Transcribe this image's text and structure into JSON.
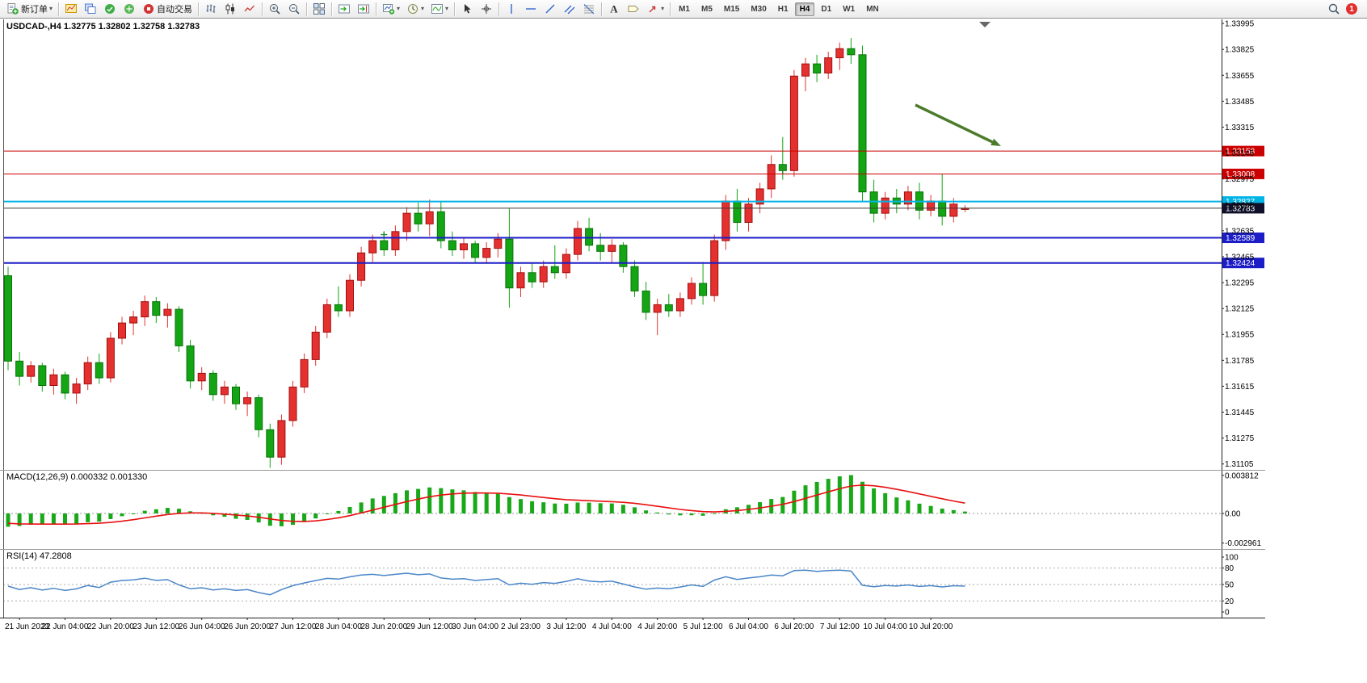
{
  "toolbar": {
    "groups": [
      {
        "buttons": [
          {
            "name": "new-order",
            "icon": "new-order-icon",
            "label": "新订单",
            "caret": true
          }
        ]
      },
      {
        "buttons": [
          {
            "name": "new-chart",
            "icon": "new-chart-icon"
          },
          {
            "name": "profiles",
            "icon": "profiles-icon"
          },
          {
            "name": "market-watch",
            "icon": "market-watch-icon"
          },
          {
            "name": "navigator",
            "icon": "navigator-icon"
          },
          {
            "name": "autotrading",
            "icon": "autotrading-icon",
            "label": "自动交易"
          }
        ]
      },
      {
        "buttons": [
          {
            "name": "bar-chart",
            "icon": "bar-chart-icon"
          },
          {
            "name": "candlestick-chart",
            "icon": "candlestick-icon"
          },
          {
            "name": "line-chart",
            "icon": "line-chart-icon"
          }
        ]
      },
      {
        "buttons": [
          {
            "name": "zoom-in",
            "icon": "zoom-in-icon"
          },
          {
            "name": "zoom-out",
            "icon": "zoom-out-icon"
          }
        ]
      },
      {
        "buttons": [
          {
            "name": "tile-windows",
            "icon": "tile-windows-icon"
          }
        ]
      },
      {
        "buttons": [
          {
            "name": "auto-scroll",
            "icon": "auto-scroll-icon"
          },
          {
            "name": "chart-shift",
            "icon": "chart-shift-icon"
          }
        ]
      },
      {
        "buttons": [
          {
            "name": "new-chart-menu",
            "icon": "chart-plus-icon",
            "caret": true
          },
          {
            "name": "periods-menu",
            "icon": "clock-icon",
            "caret": true
          },
          {
            "name": "indicators-menu",
            "icon": "indicators-icon",
            "caret": true
          }
        ]
      },
      {
        "buttons": [
          {
            "name": "cursor",
            "icon": "cursor-icon"
          },
          {
            "name": "crosshair",
            "icon": "crosshair-icon"
          }
        ]
      },
      {
        "buttons": [
          {
            "name": "vertical-line",
            "icon": "vertical-line-icon"
          },
          {
            "name": "horizontal-line",
            "icon": "horizontal-line-icon"
          },
          {
            "name": "trendline",
            "icon": "trendline-icon"
          },
          {
            "name": "equidistant-channel",
            "icon": "channel-icon"
          },
          {
            "name": "fibonacci",
            "icon": "fibonacci-icon"
          }
        ]
      },
      {
        "buttons": [
          {
            "name": "text",
            "icon": "text-icon"
          },
          {
            "name": "text-label",
            "icon": "label-icon"
          },
          {
            "name": "arrows",
            "icon": "arrow-icon",
            "caret": true
          }
        ]
      }
    ],
    "timeframes": {
      "items": [
        "M1",
        "M5",
        "M15",
        "M30",
        "H1",
        "H4",
        "D1",
        "W1",
        "MN"
      ],
      "active": "H4"
    },
    "right": {
      "notification_count": "1"
    }
  },
  "chart": {
    "header": "USDCAD-,H4 1.32775 1.32802 1.32758 1.32783",
    "symbol": "USDCAD-",
    "period": "H4",
    "open": "1.32775",
    "high": "1.32802",
    "low": "1.32758",
    "close": "1.32783"
  },
  "indicators": {
    "macd": {
      "header": "MACD(12,26,9) 0.000332 0.001330",
      "name": "MACD",
      "params": "12,26,9",
      "value_main": "0.000332",
      "value_signal": "0.001330",
      "scale": [
        "0.003812",
        "0.00",
        "-0.002961"
      ]
    },
    "rsi": {
      "header": "RSI(14) 47.2808",
      "name": "RSI",
      "period": "14",
      "value": "47.2808",
      "scale": [
        "100",
        "80",
        "50",
        "20",
        "0"
      ],
      "levels": [
        80,
        50,
        20
      ]
    }
  },
  "chart_data": {
    "type": "candlestick",
    "symbol": "USDCAD-",
    "timeframe": "H4",
    "ylim": [
      1.31077,
      1.34022
    ],
    "price_axis_labels": [
      "1.33995",
      "1.33825",
      "1.33655",
      "1.33485",
      "1.33315",
      "1.33145",
      "1.32975",
      "1.32805",
      "1.32635",
      "1.32465",
      "1.32295",
      "1.32125",
      "1.31955",
      "1.31785",
      "1.31615",
      "1.31445",
      "1.31275",
      "1.31105"
    ],
    "time_labels": [
      "21 Jun 2023",
      "22 Jun 04:00",
      "22 Jun 20:00",
      "23 Jun 12:00",
      "26 Jun 04:00",
      "26 Jun 20:00",
      "27 Jun 12:00",
      "28 Jun 04:00",
      "28 Jun 20:00",
      "29 Jun 12:00",
      "30 Jun 04:00",
      "2 Jul 23:00",
      "3 Jul 12:00",
      "4 Jul 04:00",
      "4 Jul 20:00",
      "5 Jul 12:00",
      "6 Jul 04:00",
      "6 Jul 20:00",
      "7 Jul 12:00",
      "10 Jul 04:00",
      "10 Jul 20:00"
    ],
    "label_every": 4,
    "first_label_index": 1,
    "candles_ohlc": [
      [
        1.3234,
        1.324,
        1.3172,
        1.3178
      ],
      [
        1.3178,
        1.3184,
        1.3162,
        1.3168
      ],
      [
        1.3168,
        1.3178,
        1.3164,
        1.3175
      ],
      [
        1.3175,
        1.3177,
        1.3158,
        1.3162
      ],
      [
        1.3162,
        1.3173,
        1.3156,
        1.3169
      ],
      [
        1.3169,
        1.3171,
        1.3153,
        1.3157
      ],
      [
        1.3157,
        1.3167,
        1.315,
        1.3163
      ],
      [
        1.3163,
        1.3181,
        1.3159,
        1.3177
      ],
      [
        1.3177,
        1.3183,
        1.3163,
        1.3167
      ],
      [
        1.3167,
        1.3197,
        1.3164,
        1.3193
      ],
      [
        1.3193,
        1.3207,
        1.3189,
        1.3203
      ],
      [
        1.3203,
        1.3211,
        1.3195,
        1.3207
      ],
      [
        1.3207,
        1.3221,
        1.3201,
        1.3217
      ],
      [
        1.3217,
        1.322,
        1.3203,
        1.3208
      ],
      [
        1.3208,
        1.3216,
        1.32,
        1.3212
      ],
      [
        1.3212,
        1.3214,
        1.3184,
        1.3188
      ],
      [
        1.3188,
        1.3192,
        1.316,
        1.3165
      ],
      [
        1.3165,
        1.3174,
        1.3159,
        1.317
      ],
      [
        1.317,
        1.3172,
        1.3152,
        1.3156
      ],
      [
        1.3156,
        1.3165,
        1.315,
        1.3161
      ],
      [
        1.3161,
        1.3163,
        1.3146,
        1.315
      ],
      [
        1.315,
        1.3158,
        1.3142,
        1.3154
      ],
      [
        1.3154,
        1.3156,
        1.3128,
        1.3133
      ],
      [
        1.3133,
        1.3137,
        1.3108,
        1.3115
      ],
      [
        1.3115,
        1.3143,
        1.311,
        1.3139
      ],
      [
        1.3139,
        1.3165,
        1.3135,
        1.3161
      ],
      [
        1.3161,
        1.3183,
        1.3157,
        1.3179
      ],
      [
        1.3179,
        1.3201,
        1.3175,
        1.3197
      ],
      [
        1.3197,
        1.3219,
        1.3193,
        1.3215
      ],
      [
        1.3215,
        1.3227,
        1.3207,
        1.3211
      ],
      [
        1.3211,
        1.3235,
        1.3207,
        1.3231
      ],
      [
        1.3231,
        1.3253,
        1.3227,
        1.3249
      ],
      [
        1.3249,
        1.3261,
        1.3243,
        1.3257
      ],
      [
        1.3257,
        1.3263,
        1.3247,
        1.3251
      ],
      [
        1.3251,
        1.3267,
        1.3247,
        1.3263
      ],
      [
        1.3263,
        1.3279,
        1.3257,
        1.3275
      ],
      [
        1.3275,
        1.3282,
        1.3263,
        1.3268
      ],
      [
        1.3268,
        1.3284,
        1.326,
        1.3276
      ],
      [
        1.3276,
        1.3283,
        1.3252,
        1.3257
      ],
      [
        1.3257,
        1.3263,
        1.3247,
        1.3251
      ],
      [
        1.3251,
        1.3259,
        1.3245,
        1.3255
      ],
      [
        1.3255,
        1.3257,
        1.3242,
        1.3246
      ],
      [
        1.3246,
        1.3256,
        1.3242,
        1.3252
      ],
      [
        1.3252,
        1.3262,
        1.3246,
        1.3258
      ],
      [
        1.3258,
        1.3278,
        1.3213,
        1.3226
      ],
      [
        1.3226,
        1.324,
        1.322,
        1.3236
      ],
      [
        1.3236,
        1.3242,
        1.3226,
        1.323
      ],
      [
        1.323,
        1.3244,
        1.3226,
        1.324
      ],
      [
        1.324,
        1.3254,
        1.3232,
        1.3236
      ],
      [
        1.3236,
        1.3252,
        1.3232,
        1.3248
      ],
      [
        1.3248,
        1.327,
        1.3244,
        1.3265
      ],
      [
        1.3265,
        1.3272,
        1.325,
        1.3254
      ],
      [
        1.3254,
        1.3262,
        1.3244,
        1.325
      ],
      [
        1.325,
        1.3258,
        1.3242,
        1.3254
      ],
      [
        1.3254,
        1.3256,
        1.3236,
        1.324
      ],
      [
        1.324,
        1.3244,
        1.322,
        1.3224
      ],
      [
        1.3224,
        1.323,
        1.3205,
        1.321
      ],
      [
        1.321,
        1.3219,
        1.3195,
        1.3215
      ],
      [
        1.3215,
        1.3222,
        1.3207,
        1.3211
      ],
      [
        1.3211,
        1.3223,
        1.3207,
        1.3219
      ],
      [
        1.3219,
        1.3233,
        1.3215,
        1.3229
      ],
      [
        1.3229,
        1.3243,
        1.3215,
        1.3221
      ],
      [
        1.3221,
        1.3261,
        1.3217,
        1.3257
      ],
      [
        1.3257,
        1.3287,
        1.3251,
        1.3283
      ],
      [
        1.3283,
        1.3291,
        1.3263,
        1.3269
      ],
      [
        1.3269,
        1.3285,
        1.3263,
        1.3281
      ],
      [
        1.3281,
        1.3295,
        1.3275,
        1.3291
      ],
      [
        1.3291,
        1.3313,
        1.3285,
        1.3307
      ],
      [
        1.3307,
        1.3325,
        1.3297,
        1.3303
      ],
      [
        1.3303,
        1.3369,
        1.3299,
        1.3365
      ],
      [
        1.3365,
        1.3377,
        1.3355,
        1.3373
      ],
      [
        1.3373,
        1.3379,
        1.3361,
        1.3367
      ],
      [
        1.3367,
        1.3381,
        1.3363,
        1.3377
      ],
      [
        1.3377,
        1.3387,
        1.3369,
        1.3383
      ],
      [
        1.3383,
        1.339,
        1.3373,
        1.3379
      ],
      [
        1.3379,
        1.3385,
        1.3283,
        1.3289
      ],
      [
        1.3289,
        1.3297,
        1.3269,
        1.3275
      ],
      [
        1.3275,
        1.3289,
        1.3271,
        1.3285
      ],
      [
        1.3285,
        1.3291,
        1.3275,
        1.3281
      ],
      [
        1.3281,
        1.3293,
        1.3277,
        1.3289
      ],
      [
        1.3289,
        1.3295,
        1.3271,
        1.3277
      ],
      [
        1.3277,
        1.3287,
        1.3273,
        1.3283
      ],
      [
        1.3283,
        1.3301,
        1.3267,
        1.3273
      ],
      [
        1.3273,
        1.3285,
        1.3269,
        1.3281
      ],
      [
        1.32775,
        1.32802,
        1.32758,
        1.32783
      ]
    ],
    "horizontal_lines": [
      {
        "price": 1.33158,
        "label": "1.33158",
        "color": "#cc0000",
        "width": 1
      },
      {
        "price": 1.33008,
        "label": "1.33008",
        "color": "#cc0000",
        "width": 1
      },
      {
        "price": 1.32827,
        "label": "1.32827",
        "color": "#00b4e6",
        "width": 2
      },
      {
        "price": 1.32783,
        "label": "1.32783",
        "color": "#3a3a3a",
        "tag": "#10102a",
        "width": 1,
        "role": "current-price"
      },
      {
        "price": 1.32589,
        "label": "1.32589",
        "color": "#1d1dc8",
        "width": 2
      },
      {
        "price": 1.32424,
        "label": "1.32424",
        "color": "#1d1dc8",
        "width": 2
      }
    ],
    "trade_markers": [
      {
        "index": 33,
        "price": 1.3261
      },
      {
        "index": 68,
        "price": 1.3303
      }
    ],
    "annotation_arrow": {
      "from": [
        1133,
        130
      ],
      "to": [
        1239,
        181
      ],
      "color": "#4b7b2b"
    },
    "colors": {
      "bull": "#e53030",
      "bear": "#14a514",
      "background": "#ffffff",
      "macd_hist": "#18a818",
      "macd_signal": "#e81010",
      "rsi_line": "#4a86c8"
    }
  }
}
